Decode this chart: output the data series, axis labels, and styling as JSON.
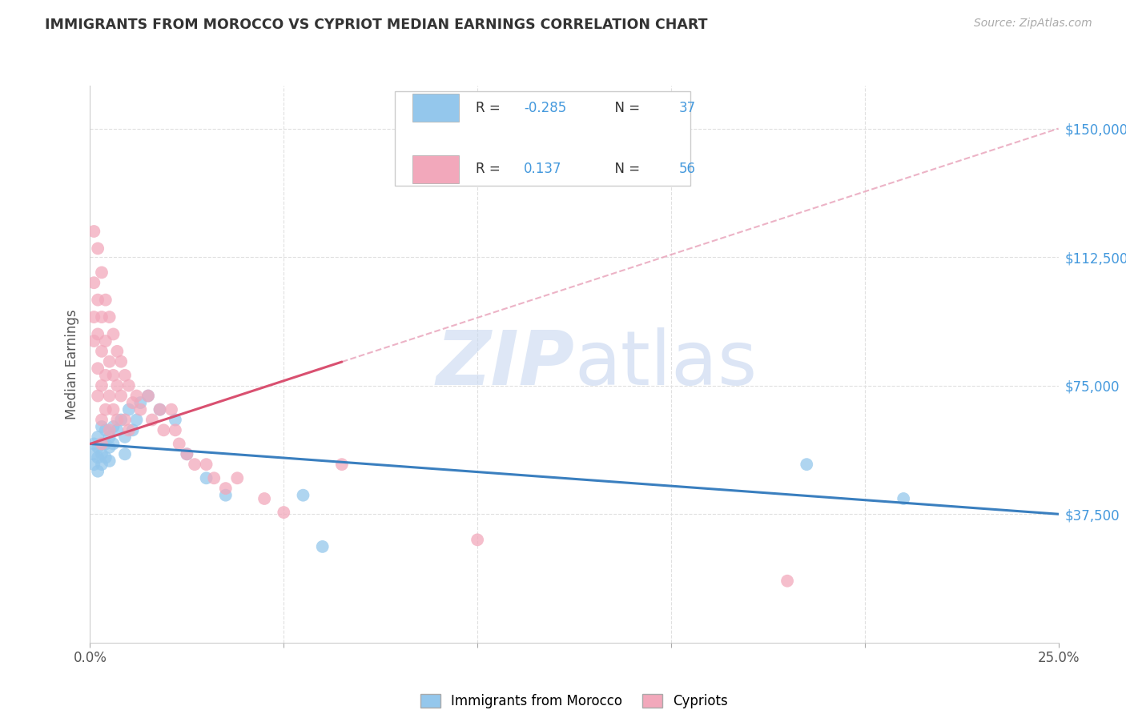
{
  "title": "IMMIGRANTS FROM MOROCCO VS CYPRIOT MEDIAN EARNINGS CORRELATION CHART",
  "source": "Source: ZipAtlas.com",
  "ylabel_ticks": [
    "$37,500",
    "$75,000",
    "$112,500",
    "$150,000"
  ],
  "ylabel_values": [
    37500,
    75000,
    112500,
    150000
  ],
  "xlim": [
    0.0,
    0.25
  ],
  "ylim": [
    0,
    162500
  ],
  "legend_labels": [
    "Immigrants from Morocco",
    "Cypriots"
  ],
  "legend_r_morocco": "-0.285",
  "legend_n_morocco": "37",
  "legend_r_cypriot": "0.137",
  "legend_n_cypriot": "56",
  "color_morocco": "#94C7EC",
  "color_cypriot": "#F2A8BB",
  "color_morocco_line": "#3A7FBF",
  "color_cypriot_line": "#D95070",
  "color_cypriot_dashed": "#E8A0B8",
  "watermark_color": "#C8D8F0",
  "background_color": "#ffffff",
  "grid_color": "#e0e0e0",
  "morocco_x": [
    0.001,
    0.001,
    0.001,
    0.002,
    0.002,
    0.002,
    0.002,
    0.003,
    0.003,
    0.003,
    0.003,
    0.004,
    0.004,
    0.004,
    0.005,
    0.005,
    0.005,
    0.006,
    0.006,
    0.007,
    0.008,
    0.009,
    0.009,
    0.01,
    0.011,
    0.012,
    0.013,
    0.015,
    0.018,
    0.022,
    0.025,
    0.03,
    0.035,
    0.055,
    0.06,
    0.185,
    0.21
  ],
  "morocco_y": [
    58000,
    55000,
    52000,
    60000,
    57000,
    54000,
    50000,
    63000,
    58000,
    55000,
    52000,
    62000,
    58000,
    54000,
    60000,
    57000,
    53000,
    63000,
    58000,
    62000,
    65000,
    60000,
    55000,
    68000,
    62000,
    65000,
    70000,
    72000,
    68000,
    65000,
    55000,
    48000,
    43000,
    43000,
    28000,
    52000,
    42000
  ],
  "cypriot_x": [
    0.001,
    0.001,
    0.001,
    0.001,
    0.002,
    0.002,
    0.002,
    0.002,
    0.002,
    0.003,
    0.003,
    0.003,
    0.003,
    0.003,
    0.003,
    0.004,
    0.004,
    0.004,
    0.004,
    0.005,
    0.005,
    0.005,
    0.005,
    0.006,
    0.006,
    0.006,
    0.007,
    0.007,
    0.007,
    0.008,
    0.008,
    0.009,
    0.009,
    0.01,
    0.01,
    0.011,
    0.012,
    0.013,
    0.015,
    0.016,
    0.018,
    0.019,
    0.021,
    0.022,
    0.023,
    0.025,
    0.027,
    0.03,
    0.032,
    0.035,
    0.038,
    0.045,
    0.05,
    0.065,
    0.1,
    0.18
  ],
  "cypriot_y": [
    120000,
    105000,
    95000,
    88000,
    115000,
    100000,
    90000,
    80000,
    72000,
    108000,
    95000,
    85000,
    75000,
    65000,
    58000,
    100000,
    88000,
    78000,
    68000,
    95000,
    82000,
    72000,
    62000,
    90000,
    78000,
    68000,
    85000,
    75000,
    65000,
    82000,
    72000,
    78000,
    65000,
    75000,
    62000,
    70000,
    72000,
    68000,
    72000,
    65000,
    68000,
    62000,
    68000,
    62000,
    58000,
    55000,
    52000,
    52000,
    48000,
    45000,
    48000,
    42000,
    38000,
    52000,
    30000,
    18000
  ]
}
